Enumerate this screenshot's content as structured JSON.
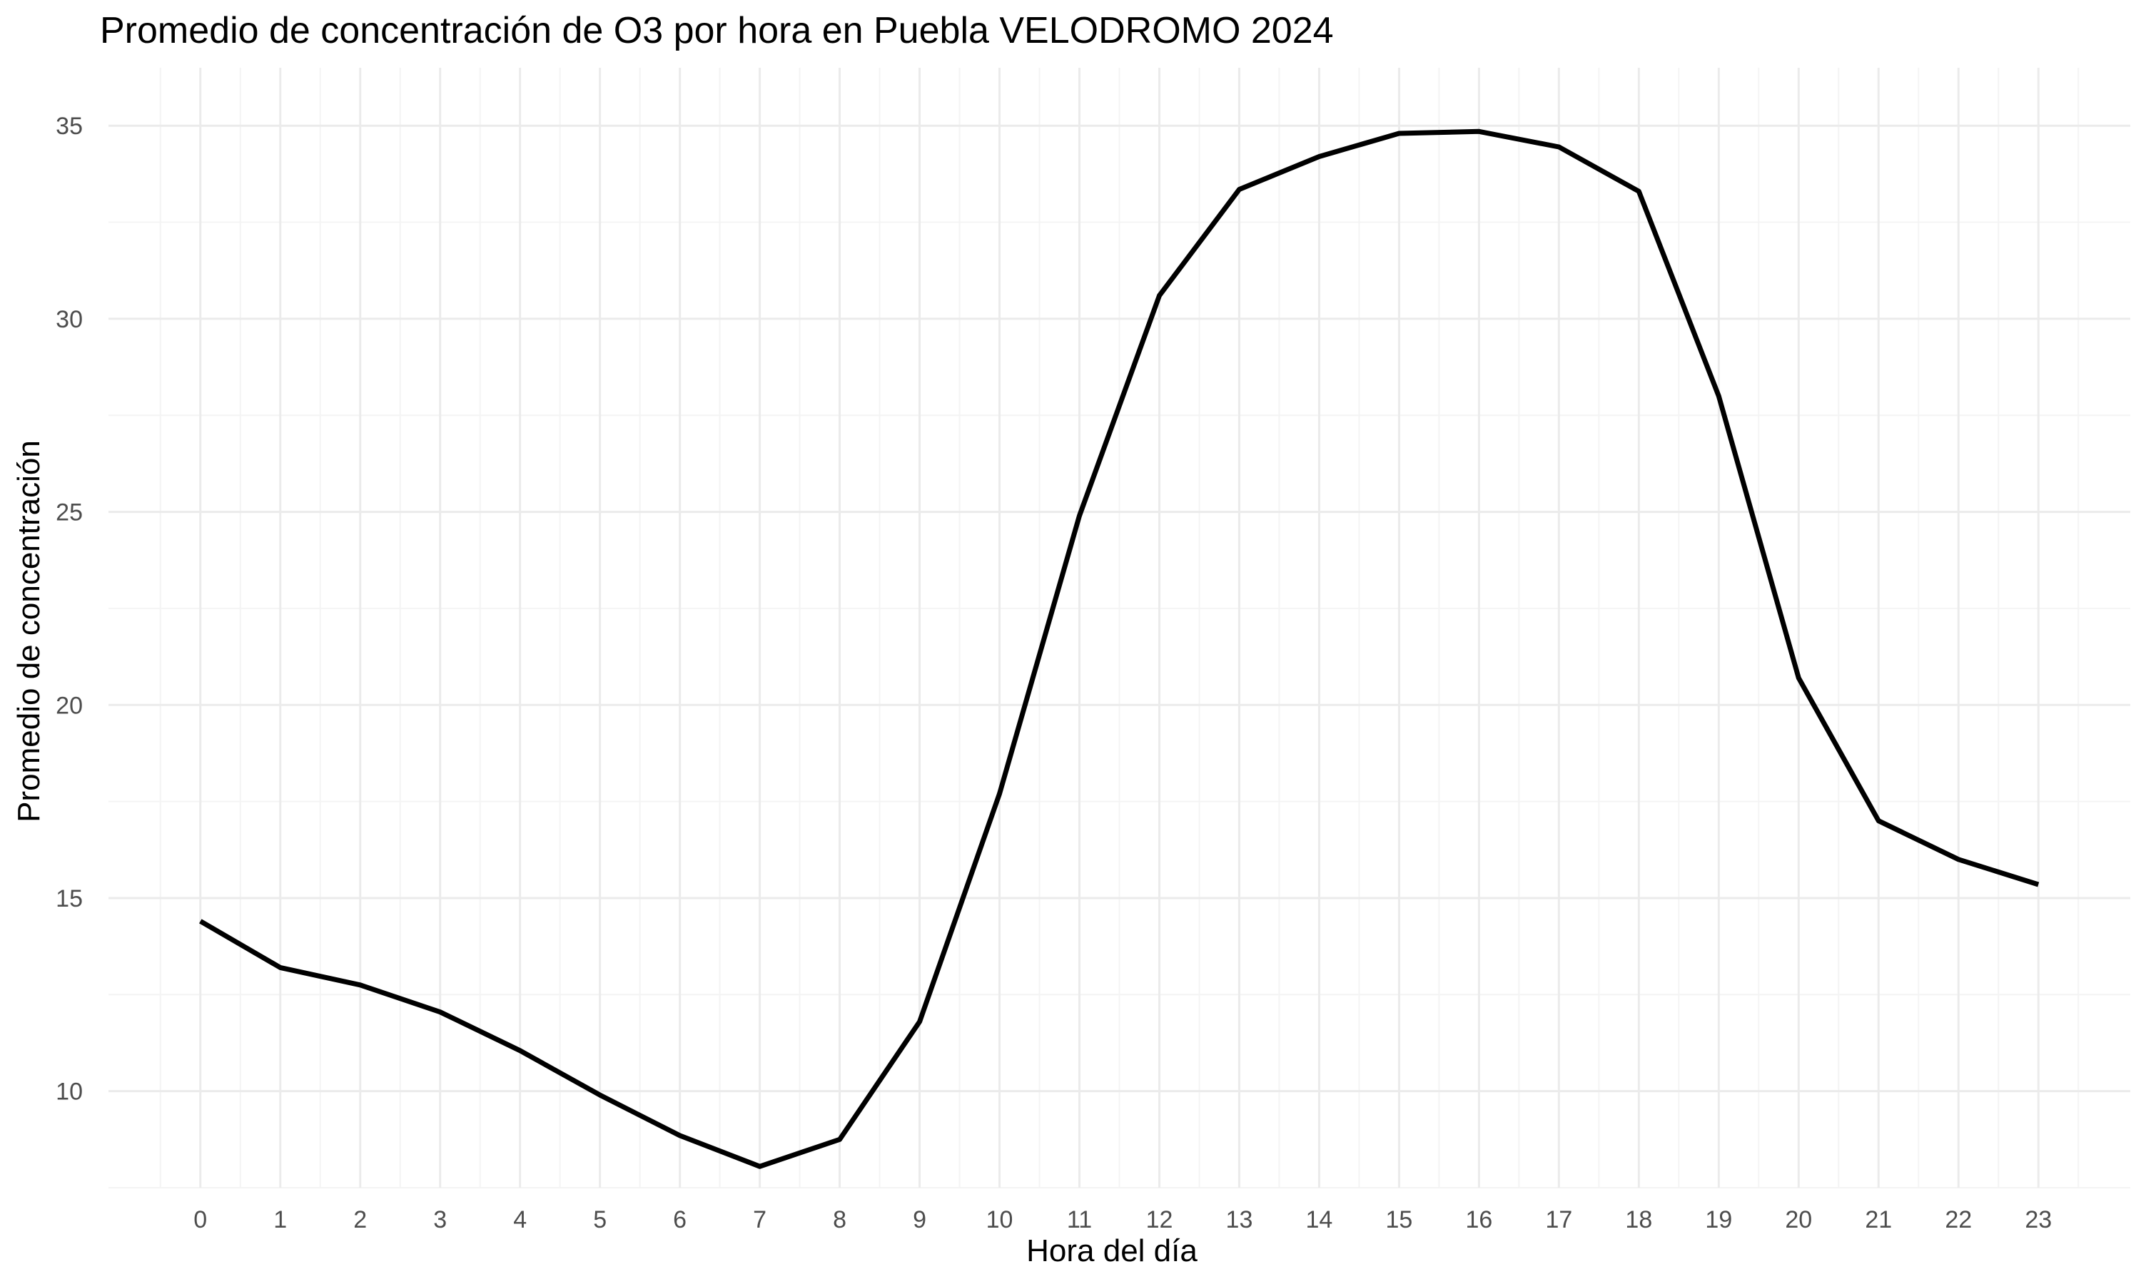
{
  "chart_data": {
    "type": "line",
    "title": "Promedio de concentración de O3 por hora en Puebla VELODROMO 2024",
    "xlabel": "Hora del día",
    "ylabel": "Promedio de concentración",
    "x": [
      0,
      1,
      2,
      3,
      4,
      5,
      6,
      7,
      8,
      9,
      10,
      11,
      12,
      13,
      14,
      15,
      16,
      17,
      18,
      19,
      20,
      21,
      22,
      23
    ],
    "y": [
      14.4,
      13.2,
      12.75,
      12.05,
      11.05,
      9.9,
      8.85,
      8.05,
      8.75,
      11.8,
      17.7,
      24.9,
      30.6,
      33.35,
      34.2,
      34.8,
      34.85,
      34.45,
      33.3,
      28.0,
      20.7,
      17.0,
      16.0,
      15.35
    ],
    "xticks": [
      "0",
      "1",
      "2",
      "3",
      "4",
      "5",
      "6",
      "7",
      "8",
      "9",
      "10",
      "11",
      "12",
      "13",
      "14",
      "15",
      "16",
      "17",
      "18",
      "19",
      "20",
      "21",
      "22",
      "23"
    ],
    "yticks": [
      "10",
      "15",
      "20",
      "25",
      "30",
      "35"
    ],
    "xlim": [
      -1.15,
      24.15
    ],
    "ylim": [
      7.5,
      36.5
    ],
    "grid": true,
    "line_color": "#000000"
  }
}
